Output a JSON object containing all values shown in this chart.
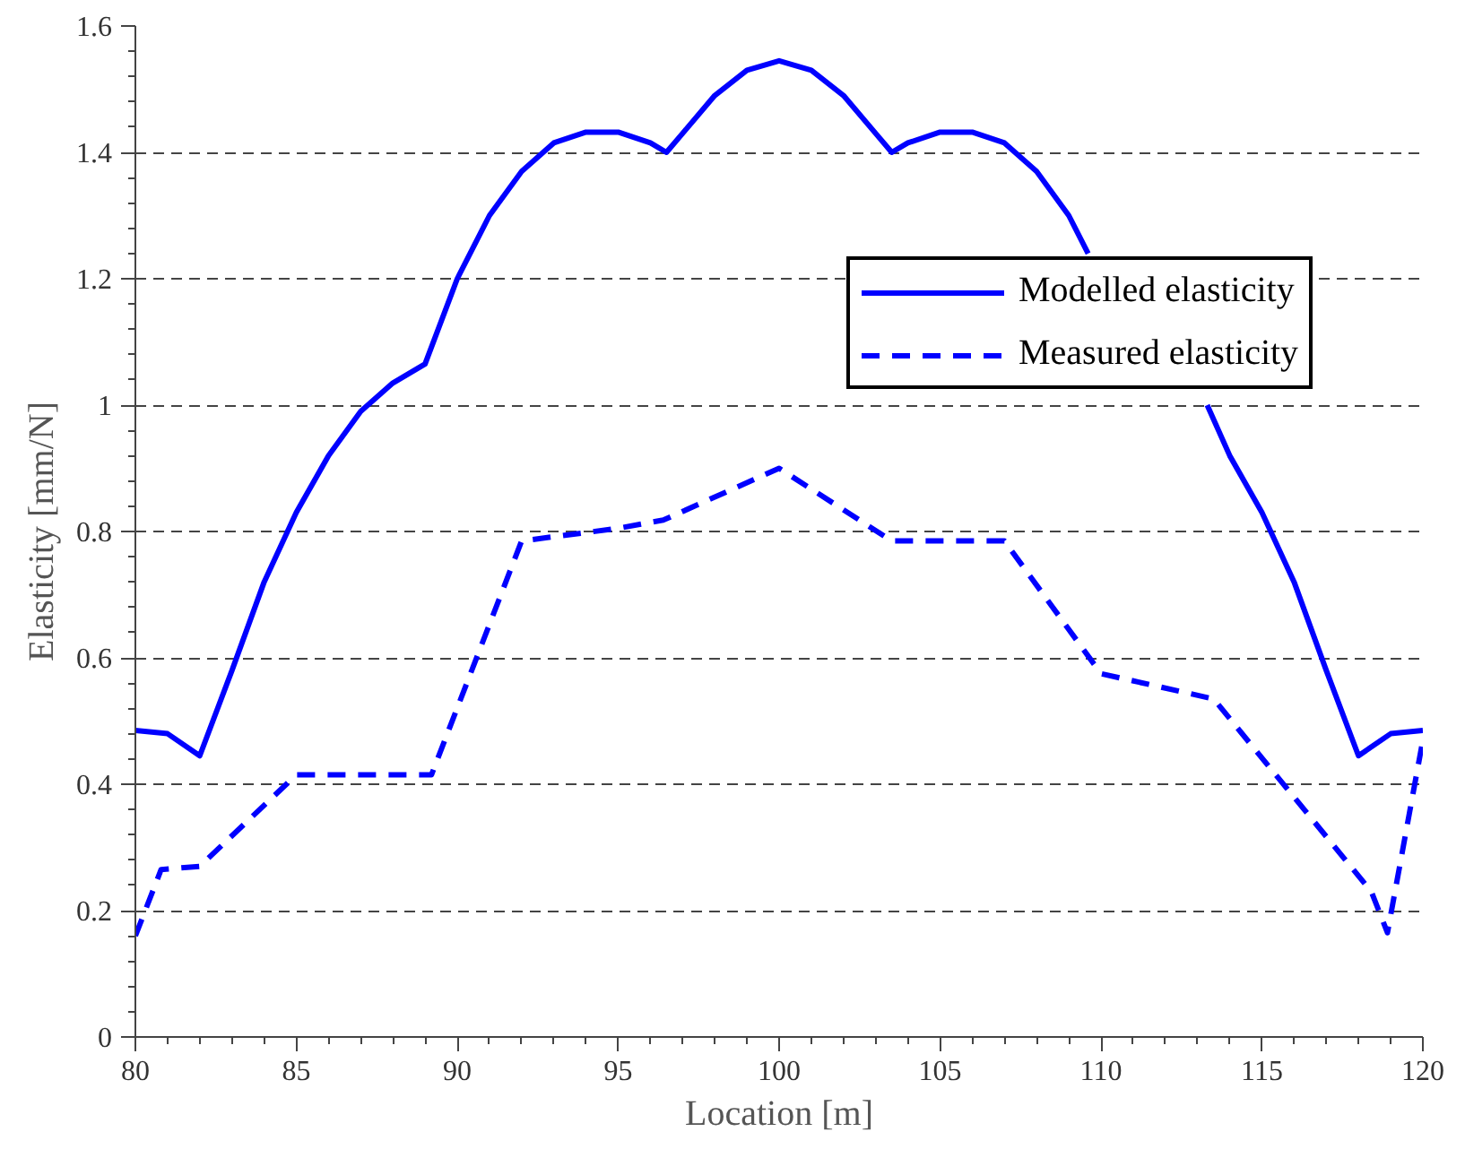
{
  "chart_data": {
    "type": "line",
    "xlabel": "Location [m]",
    "ylabel": "Elasticity [mm/N]",
    "xlim": [
      80,
      120
    ],
    "xticks": [
      80,
      85,
      90,
      95,
      100,
      105,
      110,
      115,
      120
    ],
    "ylim": [
      0,
      1.6
    ],
    "yticks": [
      0,
      0.2,
      0.4,
      0.6,
      0.8,
      1,
      1.2,
      1.4,
      1.6
    ],
    "grid": "y",
    "legend": "right",
    "series": [
      {
        "name": "Modelled elasticity",
        "color": "#0000ff",
        "line_style": "solid",
        "x": [
          80,
          81,
          82,
          83,
          84,
          85,
          86,
          87,
          88,
          89,
          90,
          91,
          92,
          93,
          94,
          95,
          96,
          96.5,
          97,
          98,
          99,
          100,
          101,
          102,
          103,
          103.5,
          104,
          105,
          106,
          107,
          108,
          109,
          109.6,
          110,
          111,
          112,
          113,
          113.3,
          114,
          115,
          116,
          117,
          118,
          119,
          120
        ],
        "values": [
          0.485,
          0.48,
          0.445,
          0.58,
          0.72,
          0.83,
          0.92,
          0.99,
          1.035,
          1.065,
          1.2,
          1.3,
          1.37,
          1.415,
          1.432,
          1.432,
          1.415,
          1.4,
          1.43,
          1.49,
          1.53,
          1.545,
          1.53,
          1.49,
          1.43,
          1.4,
          1.415,
          1.432,
          1.432,
          1.415,
          1.37,
          1.3,
          1.24,
          null,
          null,
          null,
          null,
          1.0,
          0.92,
          0.83,
          0.72,
          0.58,
          0.445,
          0.48,
          0.485
        ]
      },
      {
        "name": "Measured elasticity",
        "color": "#0000ff",
        "line_style": "dashed",
        "x": [
          80,
          80.8,
          82,
          85,
          89.2,
          92,
          95,
          96.4,
          100,
          103.5,
          107,
          110,
          113.5,
          118.4,
          118.9,
          120
        ],
        "values": [
          0.16,
          0.265,
          0.27,
          0.415,
          0.415,
          0.785,
          0.805,
          0.818,
          0.9,
          0.785,
          0.785,
          0.575,
          0.535,
          0.23,
          0.165,
          0.47
        ]
      }
    ]
  }
}
